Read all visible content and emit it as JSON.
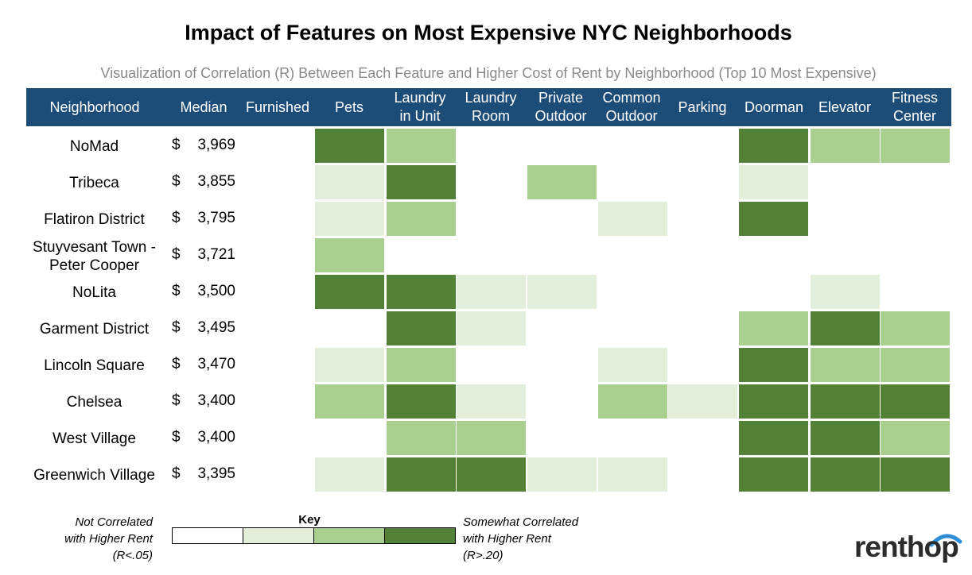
{
  "chart_data": {
    "type": "heatmap",
    "title": "Impact of Features on Most Expensive NYC Neighborhoods",
    "subtitle": "Visualization of Correlation (R) Between Each Feature and Higher Cost of Rent by Neighborhood (Top 10 Most Expensive)",
    "columns": [
      "Neighborhood",
      "Median",
      "Furnished",
      "Pets",
      "Laundry\nin Unit",
      "Laundry\nRoom",
      "Private\nOutdoor",
      "Common\nOutdoor",
      "Parking",
      "Doorman",
      "Elevator",
      "Fitness\nCenter"
    ],
    "features": [
      "Furnished",
      "Pets",
      "Laundry in Unit",
      "Laundry Room",
      "Private Outdoor",
      "Common Outdoor",
      "Parking",
      "Doorman",
      "Elevator",
      "Fitness Center"
    ],
    "rows": [
      {
        "neighborhood": "NoMad",
        "currency": "$",
        "median": "3,969",
        "levels": [
          0,
          3,
          2,
          0,
          0,
          0,
          0,
          3,
          2,
          2
        ]
      },
      {
        "neighborhood": "Tribeca",
        "currency": "$",
        "median": "3,855",
        "levels": [
          0,
          1,
          3,
          0,
          2,
          0,
          0,
          1,
          0,
          0
        ]
      },
      {
        "neighborhood": "Flatiron District",
        "currency": "$",
        "median": "3,795",
        "levels": [
          0,
          1,
          2,
          0,
          0,
          1,
          0,
          3,
          0,
          0
        ]
      },
      {
        "neighborhood": "Stuyvesant Town -\nPeter Cooper",
        "currency": "$",
        "median": "3,721",
        "levels": [
          0,
          2,
          0,
          0,
          0,
          0,
          0,
          0,
          0,
          0
        ]
      },
      {
        "neighborhood": "NoLita",
        "currency": "$",
        "median": "3,500",
        "levels": [
          0,
          3,
          3,
          1,
          1,
          0,
          0,
          0,
          1,
          0
        ]
      },
      {
        "neighborhood": "Garment District",
        "currency": "$",
        "median": "3,495",
        "levels": [
          0,
          0,
          3,
          1,
          0,
          0,
          0,
          2,
          3,
          2
        ]
      },
      {
        "neighborhood": "Lincoln Square",
        "currency": "$",
        "median": "3,470",
        "levels": [
          0,
          1,
          2,
          0,
          0,
          1,
          0,
          3,
          2,
          2
        ]
      },
      {
        "neighborhood": "Chelsea",
        "currency": "$",
        "median": "3,400",
        "levels": [
          0,
          2,
          3,
          1,
          0,
          2,
          1,
          3,
          3,
          3
        ]
      },
      {
        "neighborhood": "West Village",
        "currency": "$",
        "median": "3,400",
        "levels": [
          0,
          0,
          2,
          2,
          0,
          0,
          0,
          3,
          3,
          2
        ]
      },
      {
        "neighborhood": "Greenwich Village",
        "currency": "$",
        "median": "3,395",
        "levels": [
          0,
          1,
          3,
          3,
          1,
          1,
          0,
          3,
          3,
          3
        ]
      }
    ],
    "level_colors": [
      "#ffffff",
      "#e3efda",
      "#a9d08e",
      "#538135"
    ],
    "key": {
      "title": "Key",
      "low_label": "Not Correlated\nwith Higher Rent\n(R<.05)",
      "high_label": "Somewhat Correlated\nwith Higher Rent\n(R>.20)"
    }
  },
  "brand": {
    "logo_text": "renthop",
    "header_color": "#1c4c78"
  }
}
